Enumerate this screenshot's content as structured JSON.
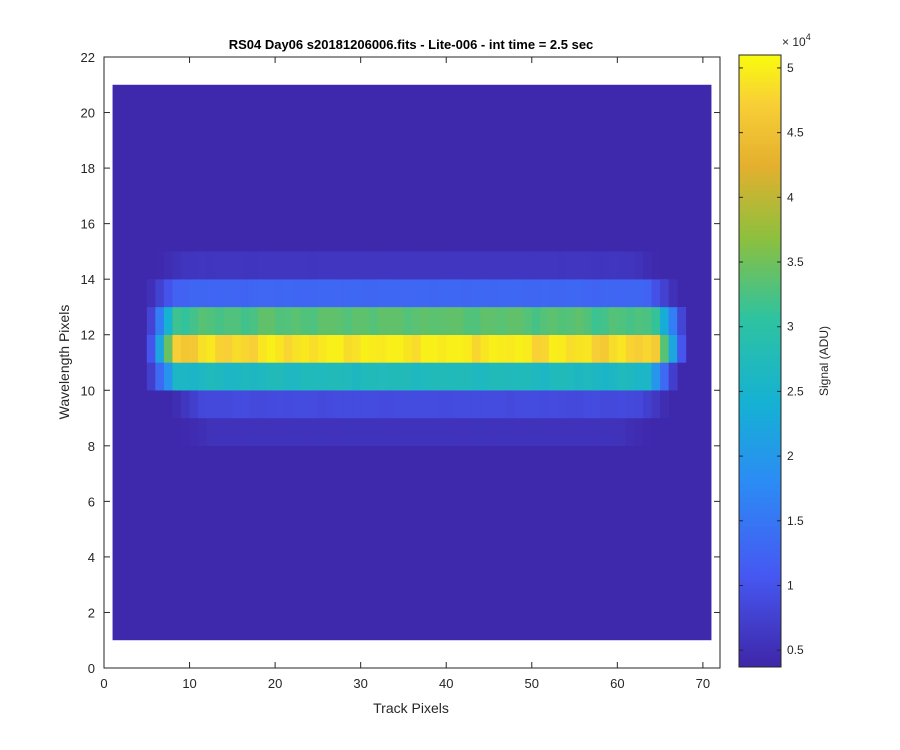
{
  "chart_data": {
    "type": "heatmap",
    "title": "RS04 Day06  s20181206006.fits - Lite-006 - int time = 2.5 sec",
    "xlabel": "Track Pixels",
    "ylabel": "Wavelength Pixels",
    "xlim": [
      0,
      72
    ],
    "ylim": [
      0,
      22
    ],
    "xticks": [
      "0",
      "10",
      "20",
      "30",
      "40",
      "50",
      "60",
      "70"
    ],
    "yticks": [
      "0",
      "2",
      "4",
      "6",
      "8",
      "10",
      "12",
      "14",
      "16",
      "18",
      "20",
      "22"
    ],
    "x_range": [
      1,
      71
    ],
    "y_range": [
      1,
      21
    ],
    "colormap": "parula",
    "colorbar": {
      "label": "Signal (ADU)",
      "exponent_base": "× 10",
      "exponent_power": "4",
      "clim": [
        0.37,
        5.1
      ],
      "ticks": [
        "0.5",
        "1",
        "1.5",
        "2",
        "2.5",
        "3",
        "3.5",
        "4",
        "4.5",
        "5"
      ]
    },
    "background_value": 0.4,
    "rows": [
      {
        "y": 8.5,
        "x_start": 9,
        "x_end": 64,
        "peak": 0.55
      },
      {
        "y": 9.5,
        "x_start": 8,
        "x_end": 66,
        "peak": 0.9
      },
      {
        "y": 10.5,
        "x_start": 5,
        "x_end": 67,
        "peak": 2.75
      },
      {
        "y": 11.5,
        "x_start": 5,
        "x_end": 68,
        "peak": 5.0
      },
      {
        "y": 12.5,
        "x_start": 5,
        "x_end": 68,
        "peak": 3.4
      },
      {
        "y": 13.5,
        "x_start": 5,
        "x_end": 67,
        "peak": 1.3
      },
      {
        "y": 14.5,
        "x_start": 6,
        "x_end": 65,
        "peak": 0.6
      }
    ]
  }
}
